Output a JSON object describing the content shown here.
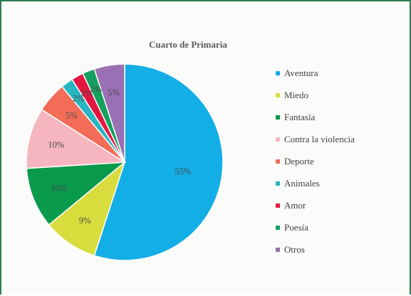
{
  "chart_data": {
    "type": "pie",
    "title": "Cuarto de Primaria",
    "legend_position": "right",
    "slices": [
      {
        "label": "Aventura",
        "value": 55,
        "display": "55%",
        "color": "#14aee6"
      },
      {
        "label": "Miedo",
        "value": 9,
        "display": "9%",
        "color": "#d8dc3c"
      },
      {
        "label": "Fantasía",
        "value": 10,
        "display": "10%",
        "color": "#0a9a4c"
      },
      {
        "label": "Contra la violencia",
        "value": 10,
        "display": "10%",
        "color": "#f6b6bf"
      },
      {
        "label": "Deporte",
        "value": 5,
        "display": "5%",
        "color": "#f26c57"
      },
      {
        "label": "Animales",
        "value": 2,
        "display": "2%",
        "color": "#27b6c2"
      },
      {
        "label": "Amor",
        "value": 2,
        "display": "2%",
        "color": "#e3173f"
      },
      {
        "label": "Poesía",
        "value": 2,
        "display": "2%",
        "color": "#15a060"
      },
      {
        "label": "Otros",
        "value": 5,
        "display": "5%",
        "color": "#9a6fb3"
      }
    ]
  }
}
